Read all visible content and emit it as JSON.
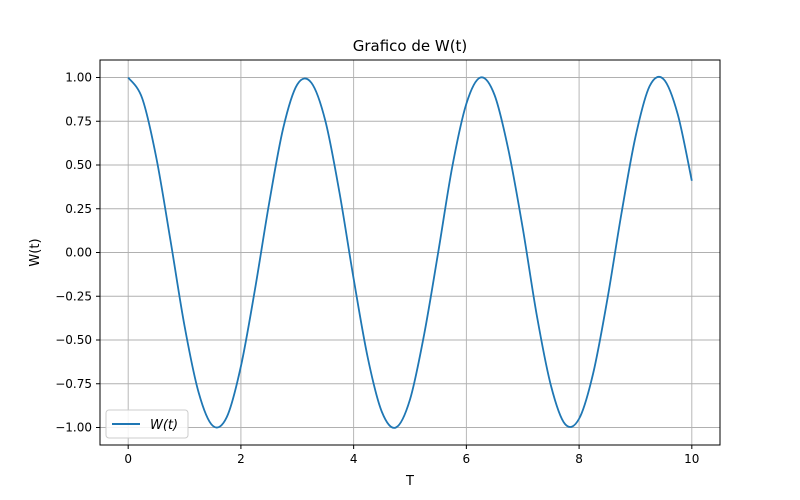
{
  "chart_data": {
    "type": "line",
    "title": "Grafico de W(t)",
    "xlabel": "T",
    "ylabel": "W(t)",
    "xlim": [
      -0.5,
      10.5
    ],
    "ylim": [
      -1.1,
      1.1
    ],
    "xticks": [
      0,
      2,
      4,
      6,
      8,
      10
    ],
    "xtick_labels": [
      "0",
      "2",
      "4",
      "6",
      "8",
      "10"
    ],
    "yticks": [
      -1.0,
      -0.75,
      -0.5,
      -0.25,
      0.0,
      0.25,
      0.5,
      0.75,
      1.0
    ],
    "ytick_labels": [
      "−1.00",
      "−0.75",
      "−0.50",
      "−0.25",
      "0.00",
      "0.25",
      "0.50",
      "0.75",
      "1.00"
    ],
    "grid": true,
    "legend_position": "lower-left",
    "series": [
      {
        "name": "W(t)",
        "color": "#1f77b4",
        "x": [
          0,
          0.25,
          0.5,
          0.75,
          1,
          1.25,
          1.5,
          1.75,
          2,
          2.25,
          2.5,
          2.75,
          3,
          3.25,
          3.5,
          3.75,
          4,
          4.25,
          4.5,
          4.75,
          5,
          5.25,
          5.5,
          5.75,
          6,
          6.25,
          6.5,
          6.75,
          7,
          7.25,
          7.5,
          7.75,
          8,
          8.25,
          8.5,
          8.75,
          9,
          9.25,
          9.5,
          9.75,
          10
        ],
        "y": [
          1.0,
          0.88,
          0.54,
          0.07,
          -0.42,
          -0.8,
          -0.99,
          -0.94,
          -0.65,
          -0.21,
          0.28,
          0.71,
          0.96,
          0.97,
          0.75,
          0.34,
          -0.15,
          -0.6,
          -0.91,
          -1.0,
          -0.84,
          -0.47,
          0.0,
          0.49,
          0.85,
          1.0,
          0.9,
          0.58,
          0.14,
          -0.36,
          -0.76,
          -0.98,
          -0.95,
          -0.69,
          -0.27,
          0.22,
          0.66,
          0.95,
          0.99,
          0.79,
          0.41
        ]
      }
    ]
  }
}
